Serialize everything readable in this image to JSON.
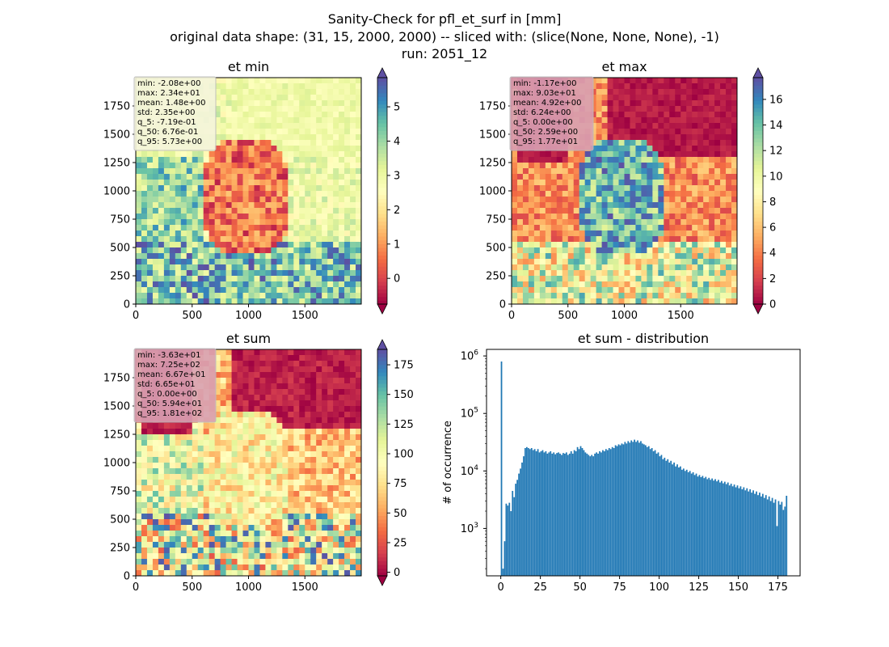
{
  "figure": {
    "suptitle": [
      "Sanity-Check for pfl_et_surf in [mm]",
      "original data shape: (31, 15, 2000, 2000) -- sliced with: (slice(None, None, None), -1)",
      "run: 2051_12"
    ]
  },
  "chart_data": [
    {
      "type": "heatmap",
      "title": "et min",
      "colormap": "Spectral",
      "xticks": [
        0,
        500,
        1000,
        1500
      ],
      "yticks": [
        0,
        250,
        500,
        750,
        1000,
        1250,
        1500,
        1750
      ],
      "xlim": [
        0,
        2000
      ],
      "ylim": [
        0,
        2000
      ],
      "colorbar": {
        "ticks": [
          0,
          1,
          2,
          3,
          4,
          5
        ],
        "range": [
          -0.75,
          5.85
        ],
        "extend": "both"
      },
      "stats": [
        "min: -2.08e+00",
        "max: 2.34e+01",
        "mean: 1.48e+00",
        "std: 2.35e+00",
        "q_5: -7.19e-01",
        "q_50: 6.76e-01",
        "q_95: 5.73e+00"
      ],
      "stats_box_color": "#f5f5dc"
    },
    {
      "type": "heatmap",
      "title": "et max",
      "colormap": "Spectral",
      "xticks": [
        0,
        500,
        1000,
        1500
      ],
      "yticks": [
        0,
        250,
        500,
        750,
        1000,
        1250,
        1500,
        1750
      ],
      "xlim": [
        0,
        2000
      ],
      "ylim": [
        0,
        2000
      ],
      "colorbar": {
        "ticks": [
          0,
          2,
          4,
          6,
          8,
          10,
          12,
          14,
          16
        ],
        "range": [
          0,
          17.7
        ],
        "extend": "both"
      },
      "stats": [
        "min: -1.17e+00",
        "max: 9.03e+01",
        "mean: 4.92e+00",
        "std: 6.24e+00",
        "q_5: 0.00e+00",
        "q_50: 2.59e+00",
        "q_95: 1.77e+01"
      ],
      "stats_box_color": "#d9a0b2"
    },
    {
      "type": "heatmap",
      "title": "et sum",
      "colormap": "Spectral",
      "xticks": [
        0,
        500,
        1000,
        1500
      ],
      "yticks": [
        0,
        250,
        500,
        750,
        1000,
        1250,
        1500,
        1750
      ],
      "xlim": [
        0,
        2000
      ],
      "ylim": [
        0,
        2000
      ],
      "colorbar": {
        "ticks": [
          0,
          25,
          50,
          75,
          100,
          125,
          150,
          175
        ],
        "range": [
          -3,
          188
        ],
        "extend": "both"
      },
      "stats": [
        "min: -3.63e+01",
        "max: 7.25e+02",
        "mean: 6.67e+01",
        "std: 6.65e+01",
        "q_5: 0.00e+00",
        "q_50: 5.94e+01",
        "q_95: 1.81e+02"
      ],
      "stats_box_color": "#d9a0b2"
    },
    {
      "type": "bar",
      "title": "et sum - distribution",
      "xlabel": "",
      "ylabel": "# of occurrence",
      "yscale": "log",
      "xlim": [
        -9,
        189
      ],
      "ylim": [
        150,
        1300000
      ],
      "xticks": [
        0,
        25,
        50,
        75,
        100,
        125,
        150,
        175
      ],
      "yticks": [
        1000,
        10000,
        100000,
        1000000
      ],
      "ytick_labels": [
        "10^3",
        "10^4",
        "10^5",
        "10^6"
      ],
      "bar_color": "#1f77b4",
      "bin_width": 0.9,
      "bins": [
        [
          0,
          800000
        ],
        [
          1,
          200
        ],
        [
          2,
          600
        ],
        [
          3,
          2700
        ],
        [
          4,
          2500
        ],
        [
          5,
          2800
        ],
        [
          6,
          2000
        ],
        [
          7,
          4500
        ],
        [
          8,
          3500
        ],
        [
          9,
          6000
        ],
        [
          10,
          7000
        ],
        [
          11,
          9000
        ],
        [
          12,
          11000
        ],
        [
          13,
          14000
        ],
        [
          14,
          18000
        ],
        [
          15,
          25000
        ],
        [
          16,
          26000
        ],
        [
          17,
          25000
        ],
        [
          18,
          24000
        ],
        [
          19,
          25000
        ],
        [
          20,
          23000
        ],
        [
          21,
          24000
        ],
        [
          22,
          22000
        ],
        [
          23,
          24000
        ],
        [
          24,
          21000
        ],
        [
          25,
          22000
        ],
        [
          26,
          23000
        ],
        [
          27,
          21000
        ],
        [
          28,
          22000
        ],
        [
          29,
          20000
        ],
        [
          30,
          21000
        ],
        [
          31,
          22000
        ],
        [
          32,
          20000
        ],
        [
          33,
          21000
        ],
        [
          34,
          19500
        ],
        [
          35,
          20500
        ],
        [
          36,
          21000
        ],
        [
          37,
          20000
        ],
        [
          38,
          19000
        ],
        [
          39,
          20500
        ],
        [
          40,
          20000
        ],
        [
          41,
          21000
        ],
        [
          42,
          19000
        ],
        [
          43,
          20000
        ],
        [
          44,
          22000
        ],
        [
          45,
          20000
        ],
        [
          46,
          23000
        ],
        [
          47,
          22000
        ],
        [
          48,
          26000
        ],
        [
          49,
          24000
        ],
        [
          50,
          27000
        ],
        [
          51,
          25000
        ],
        [
          52,
          23000
        ],
        [
          53,
          21000
        ],
        [
          54,
          20000
        ],
        [
          55,
          19000
        ],
        [
          56,
          18000
        ],
        [
          57,
          19000
        ],
        [
          58,
          18000
        ],
        [
          59,
          20000
        ],
        [
          60,
          21000
        ],
        [
          61,
          20000
        ],
        [
          62,
          22000
        ],
        [
          63,
          21000
        ],
        [
          64,
          23000
        ],
        [
          65,
          22000
        ],
        [
          66,
          24000
        ],
        [
          67,
          23000
        ],
        [
          68,
          25000
        ],
        [
          69,
          24000
        ],
        [
          70,
          26000
        ],
        [
          71,
          25000
        ],
        [
          72,
          28000
        ],
        [
          73,
          27000
        ],
        [
          74,
          29000
        ],
        [
          75,
          28000
        ],
        [
          76,
          30000
        ],
        [
          77,
          29000
        ],
        [
          78,
          32000
        ],
        [
          79,
          30000
        ],
        [
          80,
          33000
        ],
        [
          81,
          31000
        ],
        [
          82,
          34000
        ],
        [
          83,
          32000
        ],
        [
          84,
          35000
        ],
        [
          85,
          32000
        ],
        [
          86,
          34000
        ],
        [
          87,
          31000
        ],
        [
          88,
          33000
        ],
        [
          89,
          30000
        ],
        [
          90,
          29000
        ],
        [
          91,
          28000
        ],
        [
          92,
          26000
        ],
        [
          93,
          27000
        ],
        [
          94,
          24000
        ],
        [
          95,
          25000
        ],
        [
          96,
          22000
        ],
        [
          97,
          23000
        ],
        [
          98,
          20000
        ],
        [
          99,
          21000
        ],
        [
          100,
          18000
        ],
        [
          101,
          19000
        ],
        [
          102,
          16000
        ],
        [
          103,
          17000
        ],
        [
          104,
          15000
        ],
        [
          105,
          16000
        ],
        [
          106,
          14000
        ],
        [
          107,
          15000
        ],
        [
          108,
          13000
        ],
        [
          109,
          14000
        ],
        [
          110,
          12000
        ],
        [
          111,
          13000
        ],
        [
          112,
          11500
        ],
        [
          113,
          12000
        ],
        [
          114,
          10500
        ],
        [
          115,
          11000
        ],
        [
          116,
          10000
        ],
        [
          117,
          10500
        ],
        [
          118,
          9500
        ],
        [
          119,
          10000
        ],
        [
          120,
          9000
        ],
        [
          121,
          9500
        ],
        [
          122,
          8500
        ],
        [
          123,
          9000
        ],
        [
          124,
          8000
        ],
        [
          125,
          8500
        ],
        [
          126,
          7800
        ],
        [
          127,
          8200
        ],
        [
          128,
          7500
        ],
        [
          129,
          7900
        ],
        [
          130,
          7200
        ],
        [
          131,
          7600
        ],
        [
          132,
          7000
        ],
        [
          133,
          7400
        ],
        [
          134,
          6800
        ],
        [
          135,
          7200
        ],
        [
          136,
          6600
        ],
        [
          137,
          7000
        ],
        [
          138,
          6300
        ],
        [
          139,
          6700
        ],
        [
          140,
          6100
        ],
        [
          141,
          6500
        ],
        [
          142,
          5900
        ],
        [
          143,
          6300
        ],
        [
          144,
          5600
        ],
        [
          145,
          6000
        ],
        [
          146,
          5400
        ],
        [
          147,
          5800
        ],
        [
          148,
          5200
        ],
        [
          149,
          5600
        ],
        [
          150,
          5000
        ],
        [
          151,
          5400
        ],
        [
          152,
          4800
        ],
        [
          153,
          5200
        ],
        [
          154,
          4600
        ],
        [
          155,
          5000
        ],
        [
          156,
          4400
        ],
        [
          157,
          4800
        ],
        [
          158,
          4200
        ],
        [
          159,
          4600
        ],
        [
          160,
          4000
        ],
        [
          161,
          4400
        ],
        [
          162,
          3800
        ],
        [
          163,
          4200
        ],
        [
          164,
          3600
        ],
        [
          165,
          4000
        ],
        [
          166,
          3400
        ],
        [
          167,
          3800
        ],
        [
          168,
          3200
        ],
        [
          169,
          3600
        ],
        [
          170,
          3000
        ],
        [
          171,
          3400
        ],
        [
          172,
          2800
        ],
        [
          173,
          3200
        ],
        [
          174,
          1100
        ],
        [
          175,
          3000
        ],
        [
          176,
          2600
        ],
        [
          177,
          2900
        ],
        [
          178,
          2100
        ],
        [
          179,
          2400
        ],
        [
          180,
          3700
        ]
      ]
    }
  ]
}
